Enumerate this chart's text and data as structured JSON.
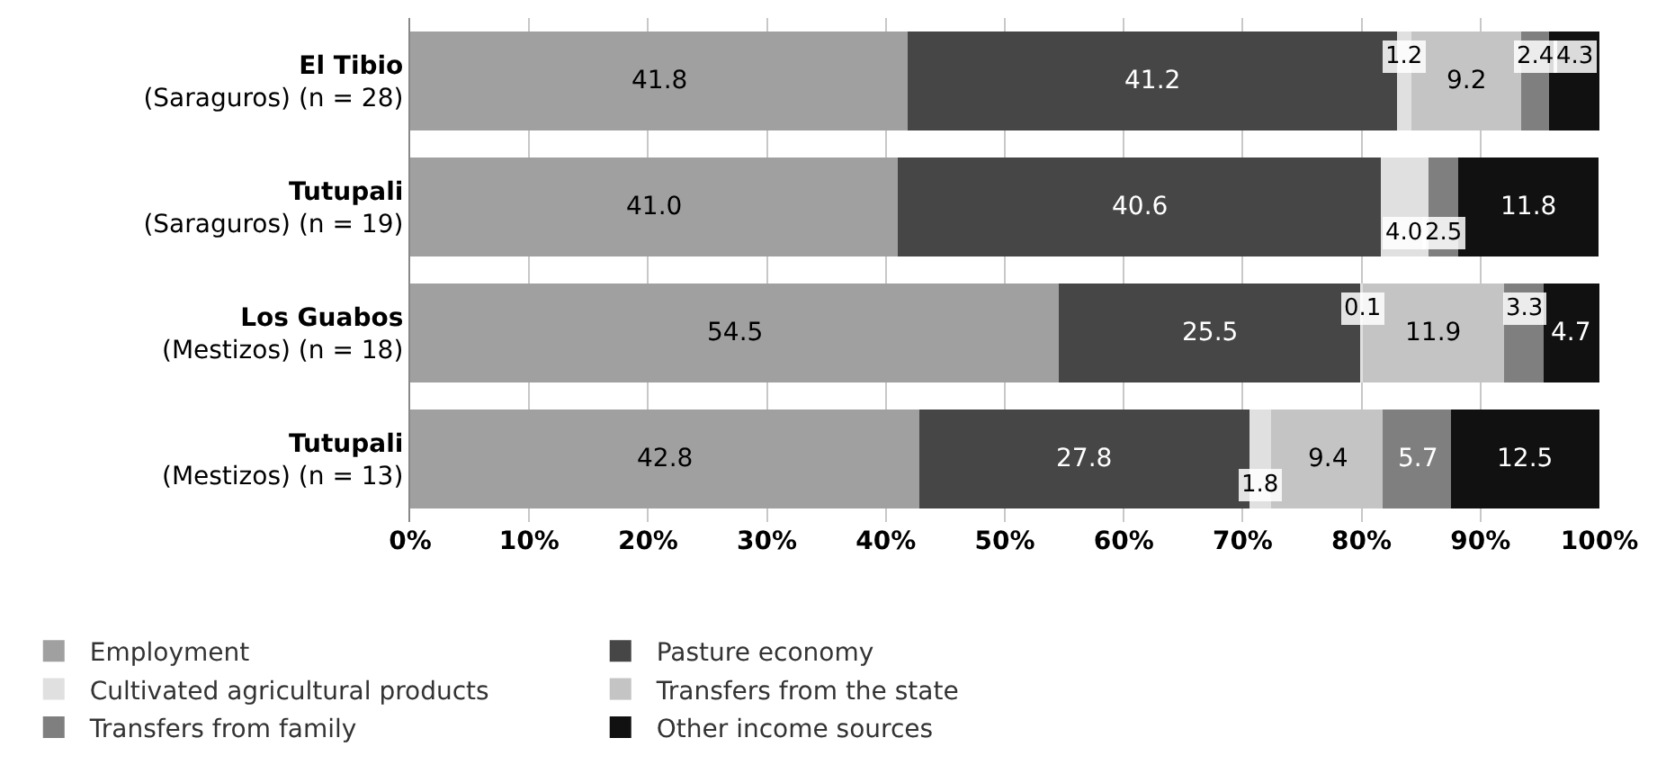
{
  "chart_data": {
    "type": "bar",
    "orientation": "horizontal",
    "stacked": true,
    "categories": [
      "El Tibio\n(Saraguros) (n = 28)",
      "Tutupali\n(Saraguros) (n = 19)",
      "Los Guabos\n(Mestizos) (n = 18)",
      "Tutupali\n(Mestizos) (n = 13)"
    ],
    "series": [
      {
        "name": "Employment",
        "color": "#a0a0a0",
        "values": [
          41.8,
          41.0,
          54.5,
          42.8
        ],
        "value_labels": [
          "41.8",
          "41.0",
          "54.5",
          "42.8"
        ]
      },
      {
        "name": "Pasture economy",
        "color": "#464646",
        "values": [
          41.2,
          40.6,
          25.5,
          27.8
        ],
        "value_labels": [
          "41.2",
          "40.6",
          "25.5",
          "27.8"
        ]
      },
      {
        "name": "Cultivated agricultural products",
        "color": "#e0e0e0",
        "values": [
          1.2,
          4.0,
          0.1,
          1.8
        ],
        "value_labels": [
          "1.2",
          "4.0",
          "0.1",
          "1.8"
        ]
      },
      {
        "name": "Transfers from the state",
        "color": "#c4c4c4",
        "values": [
          9.2,
          null,
          11.9,
          9.4
        ],
        "value_labels": [
          "9.2",
          null,
          "11.9",
          "9.4"
        ]
      },
      {
        "name": "Transfers from family",
        "color": "#7f7f7f",
        "values": [
          2.4,
          2.5,
          3.3,
          5.7
        ],
        "value_labels": [
          "2.4",
          "2.5",
          "3.3",
          "5.7"
        ]
      },
      {
        "name": "Other income sources",
        "color": "#111111",
        "values": [
          4.3,
          11.8,
          4.7,
          12.5
        ],
        "value_labels": [
          "4.3",
          "11.8",
          "4.7",
          "12.5"
        ]
      }
    ],
    "xlim": [
      0,
      100
    ],
    "xticks": [
      {
        "value": 0,
        "label": "0%"
      },
      {
        "value": 10,
        "label": "10%"
      },
      {
        "value": 20,
        "label": "20%"
      },
      {
        "value": 30,
        "label": "30%"
      },
      {
        "value": 40,
        "label": "40%"
      },
      {
        "value": 50,
        "label": "50%"
      },
      {
        "value": 60,
        "label": "60%"
      },
      {
        "value": 70,
        "label": "70%"
      },
      {
        "value": 80,
        "label": "80%"
      },
      {
        "value": 90,
        "label": "90%"
      },
      {
        "value": 100,
        "label": "100%"
      }
    ],
    "grid": "x",
    "legend": "bottom"
  }
}
